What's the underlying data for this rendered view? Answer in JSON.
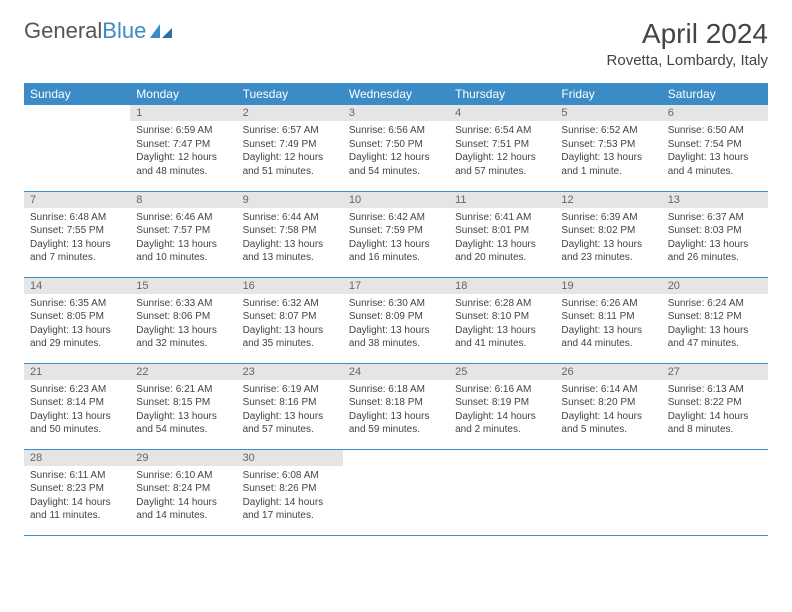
{
  "logo": {
    "text1": "General",
    "text2": "Blue"
  },
  "header": {
    "month": "April 2024",
    "location": "Rovetta, Lombardy, Italy"
  },
  "colors": {
    "accent": "#3b8bc6",
    "daynum_bg": "#e5e5e5"
  },
  "dayNames": [
    "Sunday",
    "Monday",
    "Tuesday",
    "Wednesday",
    "Thursday",
    "Friday",
    "Saturday"
  ],
  "weeks": [
    [
      {
        "n": "",
        "lines": []
      },
      {
        "n": "1",
        "lines": [
          "Sunrise: 6:59 AM",
          "Sunset: 7:47 PM",
          "Daylight: 12 hours",
          "and 48 minutes."
        ]
      },
      {
        "n": "2",
        "lines": [
          "Sunrise: 6:57 AM",
          "Sunset: 7:49 PM",
          "Daylight: 12 hours",
          "and 51 minutes."
        ]
      },
      {
        "n": "3",
        "lines": [
          "Sunrise: 6:56 AM",
          "Sunset: 7:50 PM",
          "Daylight: 12 hours",
          "and 54 minutes."
        ]
      },
      {
        "n": "4",
        "lines": [
          "Sunrise: 6:54 AM",
          "Sunset: 7:51 PM",
          "Daylight: 12 hours",
          "and 57 minutes."
        ]
      },
      {
        "n": "5",
        "lines": [
          "Sunrise: 6:52 AM",
          "Sunset: 7:53 PM",
          "Daylight: 13 hours",
          "and 1 minute."
        ]
      },
      {
        "n": "6",
        "lines": [
          "Sunrise: 6:50 AM",
          "Sunset: 7:54 PM",
          "Daylight: 13 hours",
          "and 4 minutes."
        ]
      }
    ],
    [
      {
        "n": "7",
        "lines": [
          "Sunrise: 6:48 AM",
          "Sunset: 7:55 PM",
          "Daylight: 13 hours",
          "and 7 minutes."
        ]
      },
      {
        "n": "8",
        "lines": [
          "Sunrise: 6:46 AM",
          "Sunset: 7:57 PM",
          "Daylight: 13 hours",
          "and 10 minutes."
        ]
      },
      {
        "n": "9",
        "lines": [
          "Sunrise: 6:44 AM",
          "Sunset: 7:58 PM",
          "Daylight: 13 hours",
          "and 13 minutes."
        ]
      },
      {
        "n": "10",
        "lines": [
          "Sunrise: 6:42 AM",
          "Sunset: 7:59 PM",
          "Daylight: 13 hours",
          "and 16 minutes."
        ]
      },
      {
        "n": "11",
        "lines": [
          "Sunrise: 6:41 AM",
          "Sunset: 8:01 PM",
          "Daylight: 13 hours",
          "and 20 minutes."
        ]
      },
      {
        "n": "12",
        "lines": [
          "Sunrise: 6:39 AM",
          "Sunset: 8:02 PM",
          "Daylight: 13 hours",
          "and 23 minutes."
        ]
      },
      {
        "n": "13",
        "lines": [
          "Sunrise: 6:37 AM",
          "Sunset: 8:03 PM",
          "Daylight: 13 hours",
          "and 26 minutes."
        ]
      }
    ],
    [
      {
        "n": "14",
        "lines": [
          "Sunrise: 6:35 AM",
          "Sunset: 8:05 PM",
          "Daylight: 13 hours",
          "and 29 minutes."
        ]
      },
      {
        "n": "15",
        "lines": [
          "Sunrise: 6:33 AM",
          "Sunset: 8:06 PM",
          "Daylight: 13 hours",
          "and 32 minutes."
        ]
      },
      {
        "n": "16",
        "lines": [
          "Sunrise: 6:32 AM",
          "Sunset: 8:07 PM",
          "Daylight: 13 hours",
          "and 35 minutes."
        ]
      },
      {
        "n": "17",
        "lines": [
          "Sunrise: 6:30 AM",
          "Sunset: 8:09 PM",
          "Daylight: 13 hours",
          "and 38 minutes."
        ]
      },
      {
        "n": "18",
        "lines": [
          "Sunrise: 6:28 AM",
          "Sunset: 8:10 PM",
          "Daylight: 13 hours",
          "and 41 minutes."
        ]
      },
      {
        "n": "19",
        "lines": [
          "Sunrise: 6:26 AM",
          "Sunset: 8:11 PM",
          "Daylight: 13 hours",
          "and 44 minutes."
        ]
      },
      {
        "n": "20",
        "lines": [
          "Sunrise: 6:24 AM",
          "Sunset: 8:12 PM",
          "Daylight: 13 hours",
          "and 47 minutes."
        ]
      }
    ],
    [
      {
        "n": "21",
        "lines": [
          "Sunrise: 6:23 AM",
          "Sunset: 8:14 PM",
          "Daylight: 13 hours",
          "and 50 minutes."
        ]
      },
      {
        "n": "22",
        "lines": [
          "Sunrise: 6:21 AM",
          "Sunset: 8:15 PM",
          "Daylight: 13 hours",
          "and 54 minutes."
        ]
      },
      {
        "n": "23",
        "lines": [
          "Sunrise: 6:19 AM",
          "Sunset: 8:16 PM",
          "Daylight: 13 hours",
          "and 57 minutes."
        ]
      },
      {
        "n": "24",
        "lines": [
          "Sunrise: 6:18 AM",
          "Sunset: 8:18 PM",
          "Daylight: 13 hours",
          "and 59 minutes."
        ]
      },
      {
        "n": "25",
        "lines": [
          "Sunrise: 6:16 AM",
          "Sunset: 8:19 PM",
          "Daylight: 14 hours",
          "and 2 minutes."
        ]
      },
      {
        "n": "26",
        "lines": [
          "Sunrise: 6:14 AM",
          "Sunset: 8:20 PM",
          "Daylight: 14 hours",
          "and 5 minutes."
        ]
      },
      {
        "n": "27",
        "lines": [
          "Sunrise: 6:13 AM",
          "Sunset: 8:22 PM",
          "Daylight: 14 hours",
          "and 8 minutes."
        ]
      }
    ],
    [
      {
        "n": "28",
        "lines": [
          "Sunrise: 6:11 AM",
          "Sunset: 8:23 PM",
          "Daylight: 14 hours",
          "and 11 minutes."
        ]
      },
      {
        "n": "29",
        "lines": [
          "Sunrise: 6:10 AM",
          "Sunset: 8:24 PM",
          "Daylight: 14 hours",
          "and 14 minutes."
        ]
      },
      {
        "n": "30",
        "lines": [
          "Sunrise: 6:08 AM",
          "Sunset: 8:26 PM",
          "Daylight: 14 hours",
          "and 17 minutes."
        ]
      },
      {
        "n": "",
        "lines": []
      },
      {
        "n": "",
        "lines": []
      },
      {
        "n": "",
        "lines": []
      },
      {
        "n": "",
        "lines": []
      }
    ]
  ]
}
